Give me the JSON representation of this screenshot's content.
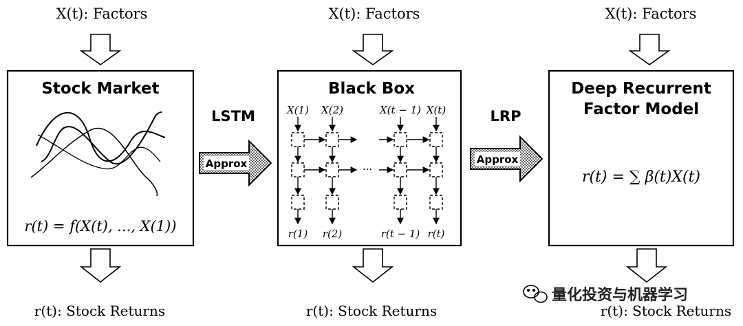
{
  "panels": [
    {
      "input_label": "X(t): Factors",
      "title": "Stock Market",
      "formula": "r(t) = f(X(t), ..., X(1))",
      "output_label": "r(t): Stock Returns"
    },
    {
      "input_label": "X(t): Factors",
      "title": "Black Box",
      "inputs": [
        "X(1)",
        "X(2)",
        "X(t − 1)",
        "X(t)"
      ],
      "outputs": [
        "r(1)",
        "r(2)",
        "r(t − 1)",
        "r(t)"
      ],
      "ellipsis": "···",
      "output_label": "r(t): Stock Returns"
    },
    {
      "input_label": "X(t): Factors",
      "title_line1": "Deep Recurrent",
      "title_line2": "Factor Model",
      "formula": "r(t) = ∑ β(t)X(t)",
      "output_label": "r(t): Stock Returns"
    }
  ],
  "connectors": [
    {
      "method": "LSTM",
      "arrow_label": "Approx"
    },
    {
      "method": "LRP",
      "arrow_label": "Approx"
    }
  ],
  "watermark": "量化投资与机器学习"
}
